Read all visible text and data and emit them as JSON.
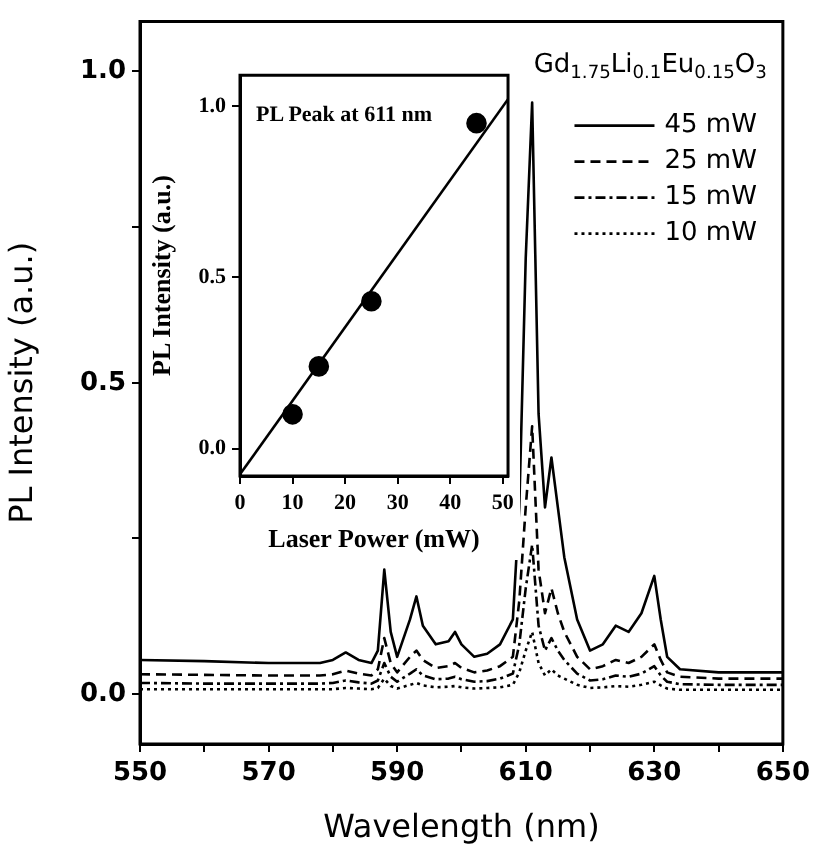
{
  "chart_data": [
    {
      "type": "line",
      "xlabel": "Wavelength (nm)",
      "ylabel": "PL Intensity (a.u.)",
      "legend_title": "Gd$_{1.75}$Li$_{0.1}$Eu$_{0.15}$O$_{3}$",
      "legend": "top right",
      "grid": false,
      "marker": "none",
      "x": [
        550,
        560,
        570,
        578,
        580,
        582,
        584,
        586,
        587,
        588,
        589,
        590,
        592,
        593,
        594,
        596,
        598,
        599,
        600,
        602,
        604,
        606,
        608,
        609,
        610,
        611,
        612,
        613,
        614,
        615,
        616,
        618,
        620,
        622,
        624,
        626,
        628,
        630,
        631,
        632,
        634,
        640,
        645,
        650
      ],
      "xlim": [
        550,
        650
      ],
      "xticks": [
        550,
        {
          "value": 560,
          "label": null
        },
        570,
        {
          "value": 580,
          "label": null
        },
        590,
        {
          "value": 600,
          "label": null
        },
        610,
        {
          "value": 620,
          "label": null
        },
        630,
        {
          "value": 640,
          "label": null
        },
        650
      ],
      "ylim": [
        -0.08,
        1.08
      ],
      "yticks": [
        {
          "value": 0,
          "label": "0.0"
        },
        {
          "value": 0.25,
          "label": null
        },
        {
          "value": 0.5,
          "label": "0.5"
        },
        {
          "value": 0.75,
          "label": null
        },
        {
          "value": 1,
          "label": "1.0"
        }
      ],
      "series": [
        {
          "name": "45 mW",
          "color": "#000000",
          "line_style": "solid",
          "values": [
            0.055,
            0.053,
            0.05,
            0.05,
            0.055,
            0.067,
            0.055,
            0.05,
            0.07,
            0.2,
            0.1,
            0.06,
            0.12,
            0.157,
            0.11,
            0.08,
            0.085,
            0.1,
            0.08,
            0.06,
            0.065,
            0.08,
            0.12,
            0.3,
            0.7,
            0.95,
            0.45,
            0.3,
            0.38,
            0.3,
            0.22,
            0.12,
            0.07,
            0.08,
            0.11,
            0.1,
            0.13,
            0.19,
            0.12,
            0.06,
            0.04,
            0.035,
            0.035,
            0.035
          ]
        },
        {
          "name": "25 mW",
          "color": "#000000",
          "line_style": "dashed",
          "values": [
            0.032,
            0.031,
            0.03,
            0.03,
            0.032,
            0.038,
            0.033,
            0.03,
            0.04,
            0.09,
            0.05,
            0.035,
            0.06,
            0.07,
            0.055,
            0.042,
            0.045,
            0.05,
            0.042,
            0.035,
            0.038,
            0.045,
            0.06,
            0.15,
            0.3,
            0.43,
            0.2,
            0.13,
            0.17,
            0.13,
            0.1,
            0.06,
            0.04,
            0.045,
            0.055,
            0.05,
            0.06,
            0.08,
            0.055,
            0.035,
            0.028,
            0.025,
            0.025,
            0.025
          ]
        },
        {
          "name": "15 mW",
          "color": "#000000",
          "line_style": "dashdot",
          "values": [
            0.018,
            0.017,
            0.017,
            0.017,
            0.018,
            0.022,
            0.019,
            0.017,
            0.022,
            0.05,
            0.028,
            0.02,
            0.033,
            0.04,
            0.03,
            0.024,
            0.025,
            0.028,
            0.024,
            0.02,
            0.021,
            0.025,
            0.033,
            0.08,
            0.17,
            0.24,
            0.11,
            0.07,
            0.09,
            0.07,
            0.055,
            0.033,
            0.022,
            0.024,
            0.03,
            0.028,
            0.033,
            0.045,
            0.03,
            0.02,
            0.016,
            0.015,
            0.015,
            0.015
          ]
        },
        {
          "name": "10 mW",
          "color": "#000000",
          "line_style": "dotted",
          "values": [
            0.008,
            0.008,
            0.008,
            0.008,
            0.008,
            0.01,
            0.009,
            0.008,
            0.01,
            0.025,
            0.013,
            0.009,
            0.015,
            0.018,
            0.014,
            0.011,
            0.012,
            0.013,
            0.011,
            0.009,
            0.01,
            0.011,
            0.015,
            0.035,
            0.07,
            0.1,
            0.05,
            0.03,
            0.04,
            0.03,
            0.025,
            0.015,
            0.01,
            0.011,
            0.013,
            0.012,
            0.015,
            0.02,
            0.014,
            0.009,
            0.007,
            0.007,
            0.007,
            0.007
          ]
        }
      ]
    },
    {
      "type": "scatter",
      "xlabel": "Laser Power (mW)",
      "ylabel": "PL Intensity (a.u.)",
      "annotations": [
        "PL Peak at 611 nm"
      ],
      "grid": false,
      "legend": false,
      "xlim": [
        0,
        51
      ],
      "xticks": [
        0,
        10,
        20,
        30,
        40,
        50
      ],
      "ylim": [
        -0.08,
        1.09
      ],
      "yticks": [
        {
          "value": 0,
          "label": "0.0"
        },
        {
          "value": 0.5,
          "label": "0.5"
        },
        {
          "value": 1,
          "label": "1.0"
        }
      ],
      "series": [
        {
          "type": "scatter",
          "marker": "circle",
          "color": "#000000",
          "x": [
            10,
            15,
            25,
            45
          ],
          "values": [
            0.1,
            0.24,
            0.43,
            0.95
          ]
        },
        {
          "type": "line",
          "marker": "none",
          "line_style": "solid",
          "color": "#000000",
          "x": [
            0,
            51
          ],
          "values": [
            -0.075,
            1.02
          ]
        }
      ]
    }
  ]
}
